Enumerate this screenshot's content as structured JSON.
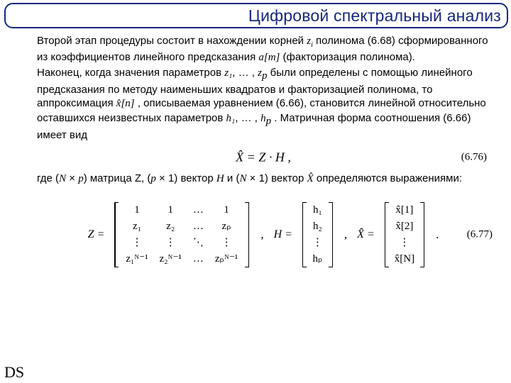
{
  "colors": {
    "frame": "#16277f",
    "text": "#000000",
    "bg": "#ffffff"
  },
  "title": "Цифровой спектральный анализ",
  "para1_a": "Второй этап процедуры состоит в нахождении корней ",
  "para1_var": "z",
  "para1_sub": "i",
  "para1_b": " полинома (6.68) сформированного из коэффициентов линейного предсказания ",
  "para1_am": "a[m]",
  "para1_c": " (факторизация полинома).",
  "para2_a": "Наконец, когда значения параметров ",
  "inline_z1": "z₁",
  "inline_sep1": ", … ,",
  "inline_zp": "z",
  "inline_zp_sub": "p",
  "para2_b": " были определены с помощью линейного предсказания по методу наименьших квадратов и факторизацией полинома, то аппроксимация ",
  "inline_xhat": "x̂[n]",
  "para2_c": " , описываемая уравнением (6.66), становится линейной относительно оставшихся неизвестных параметров ",
  "inline_h1": "h₁",
  "inline_sep2": ", … ,",
  "inline_hp": "h",
  "inline_hp_sub": "p",
  "para2_d": ". Матричная форма соотношения (6.66) имеет вид",
  "eq676": "X̂ = Z · H ,",
  "eq676_num": "(6.76)",
  "para3_a": "где (",
  "para3_N1": "N",
  "para3_times1": " × ",
  "para3_p1": "p",
  "para3_b": ") матрица Z, (",
  "para3_p2": "p",
  "para3_times2": " × 1) вектор ",
  "para3_H": "H",
  "para3_c": " и (",
  "para3_N2": "N",
  "para3_times3": " × 1) вектор ",
  "para3_Xhat": "X̂",
  "para3_d": " определяются выражениями:",
  "eq677_num": "(6.77)",
  "Z_label": "Z =",
  "H_label": "H =",
  "X_label": "X̂ =",
  "Z_rows": [
    [
      "1",
      "1",
      "…",
      "1"
    ],
    [
      "z₁",
      "z₂",
      "…",
      "zₚ"
    ],
    [
      "⋮",
      "⋮",
      "⋱",
      "⋮"
    ],
    [
      "z₁ᴺ⁻¹",
      "z₂ᴺ⁻¹",
      "…",
      "zₚᴺ⁻¹"
    ]
  ],
  "H_rows": [
    "h₁",
    "h₂",
    "⋮",
    "hₚ"
  ],
  "X_rows": [
    "x̂[1]",
    "x̂[2]",
    "⋮",
    "x̂[N]"
  ],
  "ds": "DS"
}
